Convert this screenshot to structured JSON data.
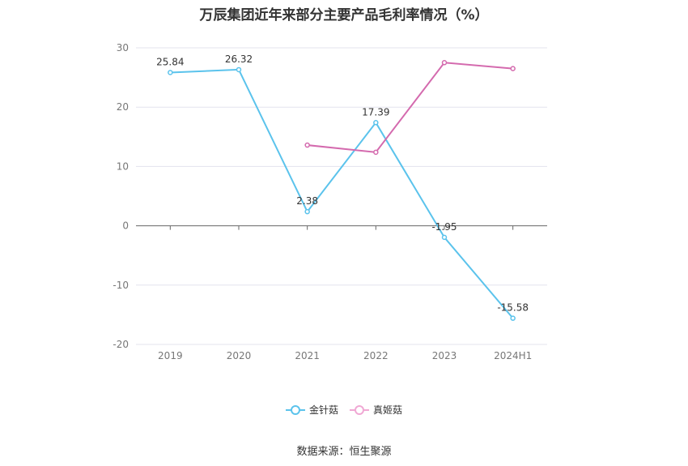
{
  "title": "万辰集团近年来部分主要产品毛利率情况（%）",
  "source": "数据来源：恒生聚源",
  "colors": {
    "series1": "#5bc3ec",
    "series2": "#d46aae",
    "grid": "#e3e3ee",
    "axis": "#666666"
  },
  "chart_data": {
    "type": "line",
    "title": "万辰集团近年来部分主要产品毛利率情况（%）",
    "categories": [
      "2019",
      "2020",
      "2021",
      "2022",
      "2023",
      "2024H1"
    ],
    "ylim": [
      -20,
      30
    ],
    "yticks": [
      30,
      20,
      10,
      0,
      -10,
      -20
    ],
    "grid": true,
    "legend_position": "bottom",
    "series": [
      {
        "name": "金针菇",
        "values": [
          25.84,
          26.32,
          2.38,
          17.39,
          -1.95,
          -15.58
        ],
        "labels": [
          "25.84",
          "26.32",
          "2.38",
          "17.39",
          "-1.95",
          "-15.58"
        ]
      },
      {
        "name": "真姬菇",
        "values": [
          null,
          null,
          13.6,
          12.4,
          27.5,
          26.5
        ],
        "labels": []
      }
    ]
  }
}
